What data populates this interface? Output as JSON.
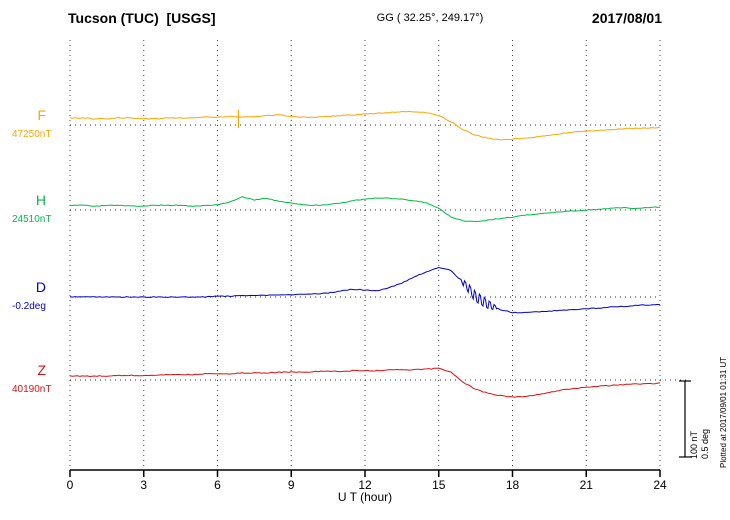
{
  "header": {
    "title": "Tucson (TUC)  [USGS]",
    "gg_coords": "GG ( 32.25°, 249.17°)",
    "date": "2017/08/01"
  },
  "xaxis": {
    "label": "U T (hour)",
    "ticks": [
      "0",
      "3",
      "6",
      "9",
      "12",
      "15",
      "18",
      "21",
      "24"
    ]
  },
  "scale_bar": {
    "nt_label": "100 nT",
    "deg_label": "0.5 deg"
  },
  "footer_note": "Plotted at 2017/09/01 01:31 UT",
  "chart_data": {
    "type": "line",
    "title": "Tucson (TUC) [USGS] magnetogram 2017/08/01",
    "x_unit": "UT hour",
    "x_range": [
      0,
      24
    ],
    "x_ticks": [
      0,
      3,
      6,
      9,
      12,
      15,
      18,
      21,
      24
    ],
    "sample_step_hours": 0.5,
    "grid": "dotted vertical at 3h intervals, dotted horizontal baselines",
    "scale": {
      "nT_per_bar": 100,
      "deg_per_bar": 0.5
    },
    "series": [
      {
        "name": "F",
        "unit": "nT",
        "baseline": 47250,
        "baseline_label": "47250nT",
        "color": "#FFA500",
        "offsets": [
          9,
          9,
          8,
          8,
          9,
          9,
          8,
          8,
          9,
          9,
          9,
          10,
          10,
          11,
          10,
          11,
          12,
          13,
          11,
          10,
          10,
          11,
          12,
          13,
          14,
          15,
          16,
          17,
          17,
          16,
          12,
          4,
          -6,
          -13,
          -17,
          -19,
          -18,
          -17,
          -15,
          -13,
          -11,
          -9,
          -8,
          -7,
          -6,
          -5,
          -4,
          -4,
          -3
        ]
      },
      {
        "name": "H",
        "unit": "nT",
        "baseline": 24510,
        "baseline_label": "24510nT",
        "color": "#00BB44",
        "offsets": [
          6,
          6,
          5,
          6,
          6,
          5,
          5,
          6,
          6,
          6,
          5,
          6,
          7,
          10,
          17,
          13,
          15,
          11,
          9,
          7,
          6,
          7,
          9,
          12,
          14,
          15,
          15,
          14,
          12,
          9,
          2,
          -9,
          -14,
          -15,
          -13,
          -11,
          -9,
          -7,
          -5,
          -4,
          -2,
          -1,
          0,
          1,
          2,
          3,
          2,
          3,
          4
        ]
      },
      {
        "name": "D",
        "unit": "deg",
        "baseline": -0.2,
        "baseline_label": "-0.2deg",
        "color": "#0000CC",
        "offsets": [
          0,
          0,
          0,
          0,
          0,
          0,
          0,
          0,
          0,
          0,
          0,
          0,
          0.005,
          0.005,
          0.01,
          0.01,
          0.01,
          0.015,
          0.015,
          0.02,
          0.02,
          0.025,
          0.04,
          0.05,
          0.045,
          0.04,
          0.06,
          0.09,
          0.13,
          0.16,
          0.19,
          0.17,
          0.09,
          0,
          -0.05,
          -0.08,
          -0.1,
          -0.1,
          -0.095,
          -0.09,
          -0.085,
          -0.08,
          -0.075,
          -0.07,
          -0.065,
          -0.06,
          -0.055,
          -0.05,
          -0.05
        ]
      },
      {
        "name": "Z",
        "unit": "nT",
        "baseline": 40190,
        "baseline_label": "40190nT",
        "color": "#DD1111",
        "offsets": [
          5,
          5,
          5,
          5,
          6,
          6,
          6,
          6,
          7,
          7,
          7,
          8,
          8,
          8,
          9,
          9,
          9,
          10,
          10,
          10,
          11,
          11,
          11,
          12,
          12,
          12,
          13,
          13,
          13,
          14,
          15,
          10,
          -3,
          -12,
          -17,
          -20,
          -22,
          -21,
          -19,
          -16,
          -13,
          -11,
          -9,
          -8,
          -7,
          -6,
          -5,
          -5,
          -4
        ]
      }
    ],
    "annotations": [
      {
        "type": "spike",
        "channel": "F",
        "hour": 6.85
      },
      {
        "type": "dense_oscillation",
        "channel": "D",
        "start_hour": 15.85,
        "end_hour": 17.35
      }
    ]
  }
}
